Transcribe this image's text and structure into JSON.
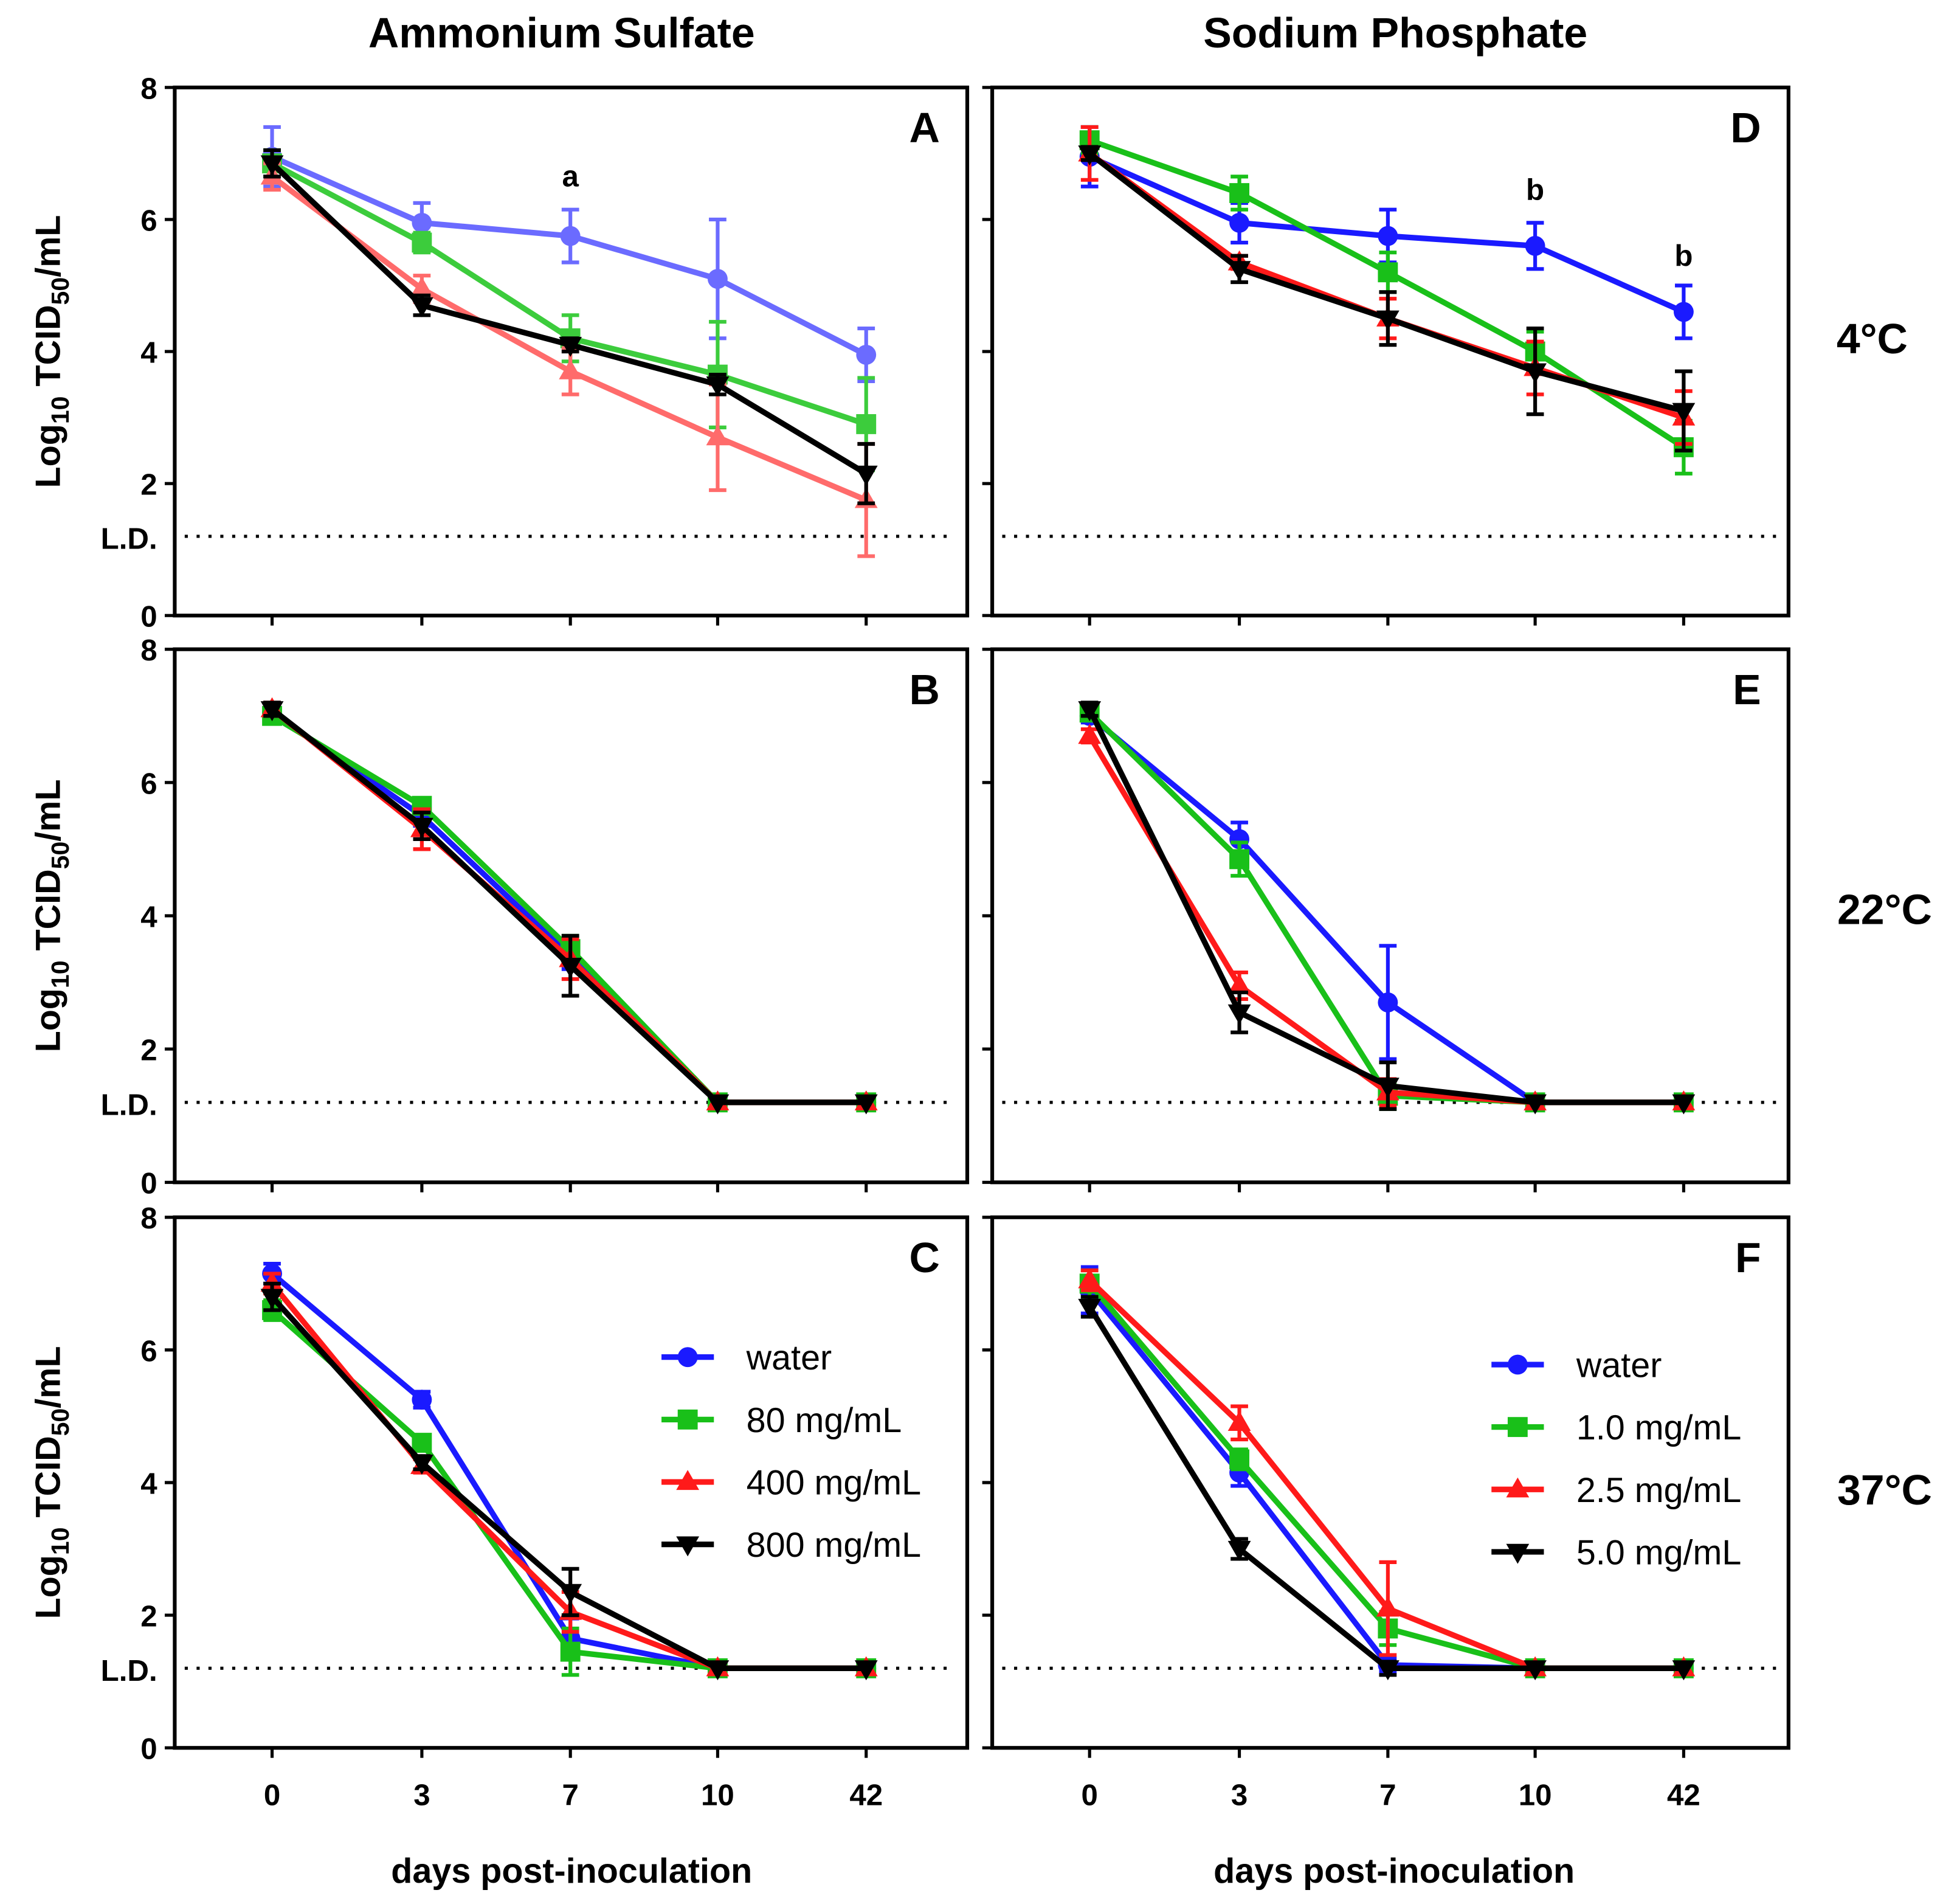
{
  "chart_data": {
    "type": "line",
    "column_titles": [
      "Ammonium Sulfate",
      "Sodium Phosphate"
    ],
    "row_labels": [
      "4°C",
      "22°C",
      "37°C"
    ],
    "x_categories": [
      "0",
      "3",
      "7",
      "10",
      "42"
    ],
    "xlabel": "days post-inoculation",
    "ylabel": "Log10 TCID50/mL",
    "ylabel_parts": {
      "pre": "Log",
      "sub1": "10",
      "mid": " TCID",
      "sub2": "50",
      "post": "/mL"
    },
    "ylim": [
      0,
      8
    ],
    "yticks": [
      "0",
      "2",
      "4",
      "6",
      "8"
    ],
    "ld_label": "L.D.",
    "ld_value": 1.2,
    "colors": {
      "water": "#1a1aff",
      "s1": "#19c019",
      "s2": "#ff1a1a",
      "s3": "#000000"
    },
    "legends": {
      "ammonium": [
        "water",
        "80 mg/mL",
        "400 mg/mL",
        "800 mg/mL"
      ],
      "phosphate": [
        "water",
        "1.0 mg/mL",
        "2.5 mg/mL",
        "5.0 mg/mL"
      ]
    },
    "panels": [
      {
        "id": "A",
        "col": 0,
        "row": 0,
        "faded": true,
        "annotations": [
          {
            "text": "a",
            "x": "7",
            "y": 6.5
          }
        ],
        "series": [
          {
            "name": "water",
            "values": [
              6.95,
              5.95,
              5.75,
              5.1,
              3.95
            ],
            "err": [
              0.45,
              0.3,
              0.4,
              0.9,
              0.4
            ]
          },
          {
            "name": "80 mg/mL",
            "values": [
              6.85,
              5.65,
              4.2,
              3.65,
              2.9
            ],
            "err": [
              0.2,
              0.15,
              0.35,
              0.8,
              0.7
            ]
          },
          {
            "name": "400 mg/mL",
            "values": [
              6.65,
              4.95,
              3.7,
              2.7,
              1.75
            ],
            "err": [
              0.2,
              0.2,
              0.35,
              0.8,
              0.85
            ]
          },
          {
            "name": "800 mg/mL",
            "values": [
              6.85,
              4.7,
              4.1,
              3.5,
              2.15
            ],
            "err": [
              0.2,
              0.15,
              0.1,
              0.15,
              0.45
            ]
          }
        ]
      },
      {
        "id": "B",
        "col": 0,
        "row": 1,
        "annotations": [],
        "series": [
          {
            "name": "water",
            "values": [
              7.05,
              5.5,
              3.4,
              1.2,
              1.2
            ],
            "err": [
              0.1,
              0.15,
              0.2,
              0,
              0
            ]
          },
          {
            "name": "80 mg/mL",
            "values": [
              7.0,
              5.65,
              3.5,
              1.2,
              1.2
            ],
            "err": [
              0.1,
              0.1,
              0.2,
              0,
              0
            ]
          },
          {
            "name": "400 mg/mL",
            "values": [
              7.1,
              5.3,
              3.35,
              1.2,
              1.2
            ],
            "err": [
              0.1,
              0.3,
              0.3,
              0,
              0
            ]
          },
          {
            "name": "800 mg/mL",
            "values": [
              7.1,
              5.35,
              3.25,
              1.2,
              1.2
            ],
            "err": [
              0.1,
              0.2,
              0.45,
              0,
              0
            ]
          }
        ]
      },
      {
        "id": "C",
        "col": 0,
        "row": 2,
        "legend": "ammonium",
        "annotations": [],
        "series": [
          {
            "name": "water",
            "values": [
              7.15,
              5.25,
              1.65,
              1.2,
              1.2
            ],
            "err": [
              0.15,
              0.12,
              0.3,
              0,
              0
            ]
          },
          {
            "name": "80 mg/mL",
            "values": [
              6.6,
              4.6,
              1.45,
              1.2,
              1.2
            ],
            "err": [
              0.15,
              0.1,
              0.35,
              0,
              0
            ]
          },
          {
            "name": "400 mg/mL",
            "values": [
              7.0,
              4.25,
              2.05,
              1.2,
              1.2
            ],
            "err": [
              0.15,
              0.1,
              0.3,
              0,
              0
            ]
          },
          {
            "name": "800 mg/mL",
            "values": [
              6.8,
              4.3,
              2.35,
              1.2,
              1.2
            ],
            "err": [
              0.2,
              0.1,
              0.35,
              0,
              0
            ]
          }
        ]
      },
      {
        "id": "D",
        "col": 1,
        "row": 0,
        "annotations": [
          {
            "text": "b",
            "x": "10",
            "y": 6.3
          },
          {
            "text": "b",
            "x": "42",
            "y": 5.3
          }
        ],
        "series": [
          {
            "name": "water",
            "values": [
              6.95,
              5.95,
              5.75,
              5.6,
              4.6
            ],
            "err": [
              0.45,
              0.3,
              0.4,
              0.35,
              0.4
            ]
          },
          {
            "name": "1.0 mg/mL",
            "values": [
              7.2,
              6.4,
              5.2,
              4.0,
              2.55
            ],
            "err": [
              0.2,
              0.25,
              0.3,
              0.3,
              0.4
            ]
          },
          {
            "name": "2.5 mg/mL",
            "values": [
              7.0,
              5.35,
              4.5,
              3.75,
              3.0
            ],
            "err": [
              0.4,
              0.1,
              0.3,
              0.4,
              0.4
            ]
          },
          {
            "name": "5.0 mg/mL",
            "values": [
              7.0,
              5.25,
              4.5,
              3.7,
              3.1
            ],
            "err": [
              0.1,
              0.2,
              0.4,
              0.65,
              0.6
            ]
          }
        ]
      },
      {
        "id": "E",
        "col": 1,
        "row": 1,
        "annotations": [],
        "series": [
          {
            "name": "water",
            "values": [
              7.0,
              5.15,
              2.7,
              1.2,
              1.2
            ],
            "err": [
              0.1,
              0.25,
              0.85,
              0,
              0
            ]
          },
          {
            "name": "1.0 mg/mL",
            "values": [
              7.05,
              4.85,
              1.3,
              1.2,
              1.2
            ],
            "err": [
              0.1,
              0.25,
              0.2,
              0,
              0
            ]
          },
          {
            "name": "2.5 mg/mL",
            "values": [
              6.7,
              2.95,
              1.35,
              1.2,
              1.2
            ],
            "err": [
              0.1,
              0.2,
              0.2,
              0,
              0
            ]
          },
          {
            "name": "5.0 mg/mL",
            "values": [
              7.1,
              2.55,
              1.45,
              1.2,
              1.2
            ],
            "err": [
              0.1,
              0.3,
              0.35,
              0,
              0
            ]
          }
        ]
      },
      {
        "id": "F",
        "col": 1,
        "row": 2,
        "legend": "phosphate",
        "annotations": [],
        "series": [
          {
            "name": "water",
            "values": [
              6.9,
              4.15,
              1.25,
              1.2,
              1.2
            ],
            "err": [
              0.35,
              0.2,
              0.1,
              0,
              0
            ]
          },
          {
            "name": "1.0 mg/mL",
            "values": [
              7.0,
              4.35,
              1.8,
              1.2,
              1.2
            ],
            "err": [
              0.2,
              0.15,
              0.25,
              0,
              0
            ]
          },
          {
            "name": "2.5 mg/mL",
            "values": [
              7.05,
              4.9,
              2.1,
              1.2,
              1.2
            ],
            "err": [
              0.15,
              0.25,
              0.7,
              0,
              0
            ]
          },
          {
            "name": "5.0 mg/mL",
            "values": [
              6.65,
              3.0,
              1.2,
              1.2,
              1.2
            ],
            "err": [
              0.15,
              0.15,
              0.1,
              0,
              0
            ]
          }
        ]
      }
    ]
  }
}
